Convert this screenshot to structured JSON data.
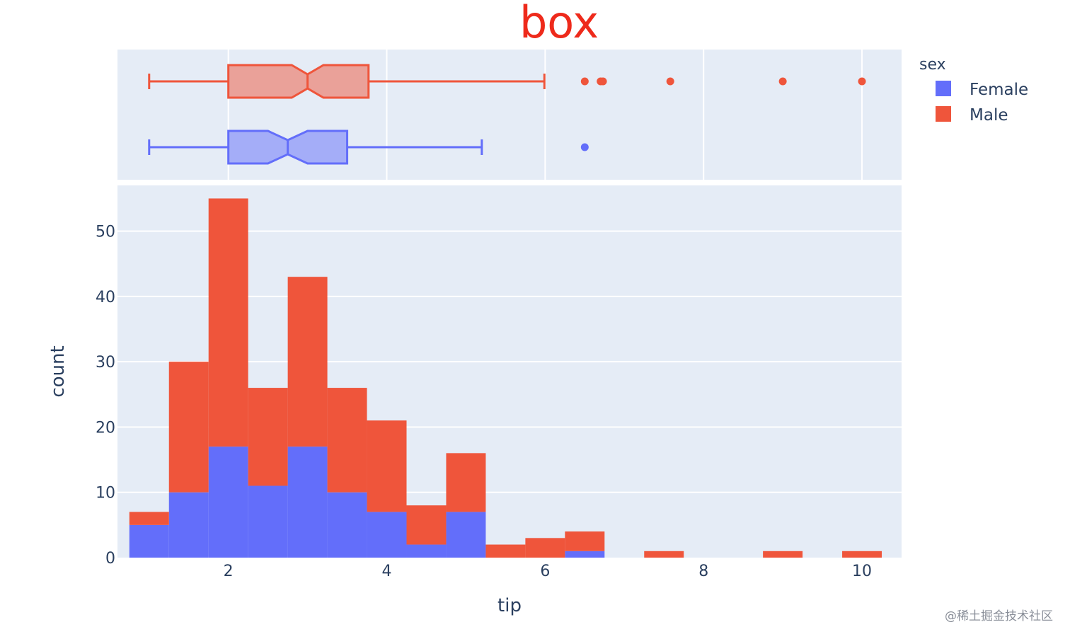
{
  "colors": {
    "title": "#ee2a1b",
    "female": "#636efa",
    "male": "#ef553b",
    "plot_bg": "#e5ecf6",
    "grid": "#ffffff",
    "text": "#2a3f5f"
  },
  "watermark": "@稀土掘金技术社区",
  "chart_data": {
    "type": "bar",
    "title": "box",
    "xlabel": "tip",
    "ylabel": "count",
    "xlim": [
      0.6,
      10.5
    ],
    "ylim": [
      0,
      57
    ],
    "x_ticks": [
      "2",
      "4",
      "6",
      "8",
      "10"
    ],
    "y_ticks": [
      "0",
      "10",
      "20",
      "30",
      "40",
      "50"
    ],
    "barmode": "stack",
    "bin_edges": [
      0.75,
      1.25,
      1.75,
      2.25,
      2.75,
      3.25,
      3.75,
      4.25,
      4.75,
      5.25,
      5.75,
      6.25,
      6.75,
      7.25,
      7.75,
      8.25,
      8.75,
      9.25,
      9.75,
      10.25
    ],
    "legend": {
      "title": "sex",
      "position": "top-right"
    },
    "series": [
      {
        "name": "Female",
        "color": "#636efa",
        "values": [
          5,
          10,
          17,
          11,
          17,
          10,
          7,
          2,
          7,
          0,
          0,
          1,
          0,
          0,
          0,
          0,
          0,
          0,
          0
        ]
      },
      {
        "name": "Male",
        "color": "#ef553b",
        "values": [
          2,
          20,
          38,
          15,
          26,
          16,
          14,
          6,
          9,
          2,
          3,
          3,
          0,
          1,
          0,
          0,
          1,
          0,
          1
        ]
      }
    ],
    "marginal_box": {
      "notched": true,
      "boxes": [
        {
          "name": "Male",
          "min": 1.0,
          "q1": 2.0,
          "median": 3.0,
          "q3": 3.77,
          "upper_fence": 5.99,
          "notch_low": 2.8,
          "notch_high": 3.2,
          "outliers": [
            6.5,
            6.7,
            6.73,
            7.58,
            9.0,
            10.0
          ]
        },
        {
          "name": "Female",
          "min": 1.0,
          "q1": 2.0,
          "median": 2.75,
          "q3": 3.5,
          "upper_fence": 5.2,
          "notch_low": 2.5,
          "notch_high": 3.0,
          "outliers": [
            6.5
          ]
        }
      ]
    }
  }
}
